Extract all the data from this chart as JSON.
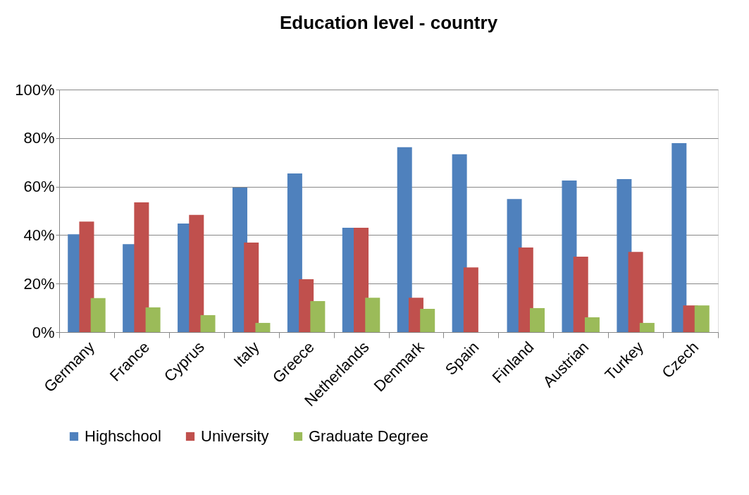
{
  "chart_data": {
    "type": "bar",
    "title": "Education level - country",
    "categories": [
      "Germany",
      "France",
      "Cyprus",
      "Italy",
      "Greece",
      "Netherlands",
      "Denmark",
      "Spain",
      "Finland",
      "Austrian",
      "Turkey",
      "Czech"
    ],
    "series": [
      {
        "name": "Highschool",
        "color": "#4f81bd",
        "values": [
          40.3,
          36.3,
          44.8,
          59.6,
          65.4,
          43,
          76.2,
          73.3,
          54.9,
          62.5,
          63.1,
          77.9
        ]
      },
      {
        "name": "University",
        "color": "#c0504d",
        "values": [
          45.6,
          53.5,
          48.3,
          36.9,
          21.8,
          43,
          14.2,
          26.7,
          34.9,
          31.1,
          33.1,
          11
        ]
      },
      {
        "name": "Graduate Degree",
        "color": "#9bbb59",
        "values": [
          14,
          10.2,
          7,
          3.8,
          12.8,
          14.2,
          9.6,
          0,
          9.9,
          6.1,
          3.8,
          11
        ]
      }
    ],
    "ylim": [
      0,
      100
    ],
    "yticks": [
      {
        "value": 0,
        "label": "0%"
      },
      {
        "value": 20,
        "label": "20%"
      },
      {
        "value": 40,
        "label": "40%"
      },
      {
        "value": 60,
        "label": "60%"
      },
      {
        "value": 80,
        "label": "80%"
      },
      {
        "value": 100,
        "label": "100%"
      }
    ],
    "grid": "y",
    "legend": "bottom"
  }
}
